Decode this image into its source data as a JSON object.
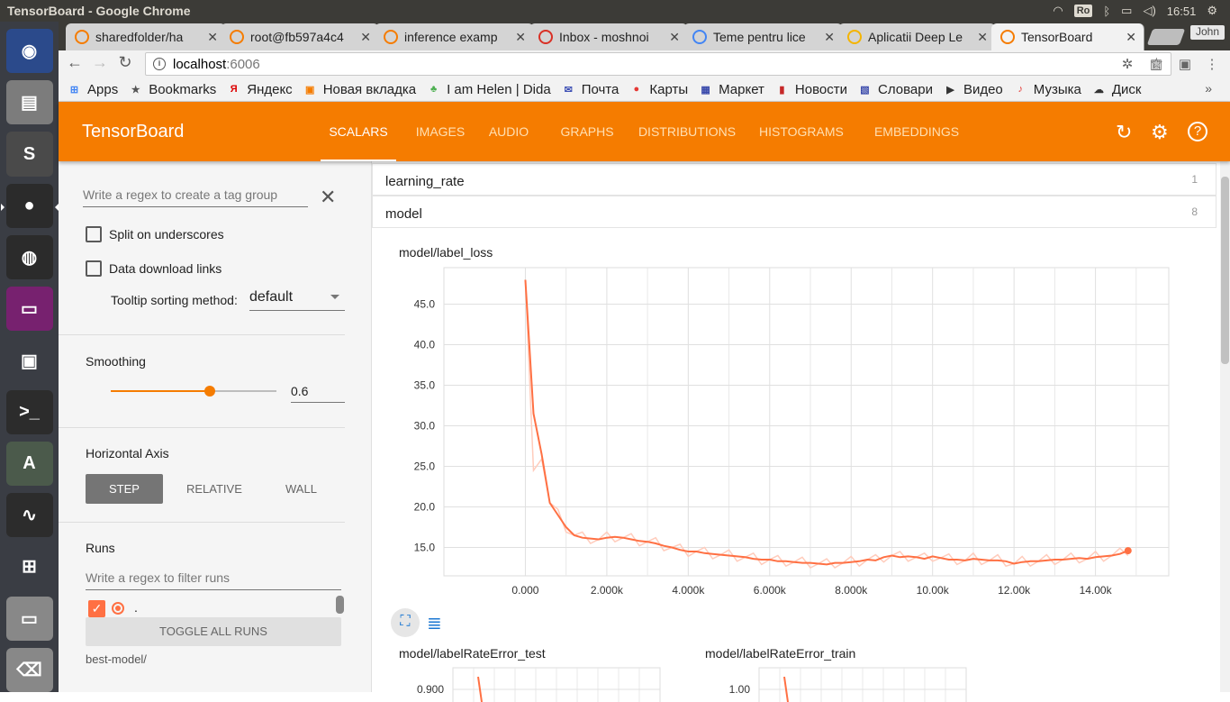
{
  "os": {
    "window_title": "TensorBoard - Google Chrome",
    "keyboard_layout": "Ro",
    "clock": "16:51"
  },
  "launcher": {
    "items": [
      {
        "name": "dash-home-icon",
        "color": "#2b4a8b",
        "glyph": "◉"
      },
      {
        "name": "file-manager-icon",
        "color": "#7c7c7c",
        "glyph": "▤"
      },
      {
        "name": "sublime-text-icon",
        "color": "#4a4a4a",
        "glyph": "S"
      },
      {
        "name": "chrome-icon",
        "color": "#2b2b2b",
        "glyph": "●"
      },
      {
        "name": "firefox-icon",
        "color": "#2b2b2b",
        "glyph": "◍"
      },
      {
        "name": "app-purple-icon",
        "color": "#77216f",
        "glyph": "▭"
      },
      {
        "name": "remote-desktop-icon",
        "color": "#3a3d44",
        "glyph": "▣"
      },
      {
        "name": "terminal-icon",
        "color": "#2c2c2c",
        "glyph": ">_"
      },
      {
        "name": "software-updater-icon",
        "color": "#4b5a4b",
        "glyph": "A"
      },
      {
        "name": "system-monitor-icon",
        "color": "#2c2c2c",
        "glyph": "∿"
      },
      {
        "name": "workspace-switcher-icon",
        "color": "#3a3d44",
        "glyph": "⊞"
      },
      {
        "name": "disk-drive-icon",
        "color": "#888",
        "glyph": "▭"
      },
      {
        "name": "trash-icon",
        "color": "#888",
        "glyph": "⌫"
      }
    ]
  },
  "tabs": [
    {
      "label": "sharedfolder/ha",
      "icon_color": "#f57c00",
      "active": false
    },
    {
      "label": "root@fb597a4c4",
      "icon_color": "#f57c00",
      "active": false
    },
    {
      "label": "inference examp",
      "icon_color": "#f57c00",
      "active": false
    },
    {
      "label": "Inbox - moshnoi",
      "icon_color": "#d93025",
      "active": false
    },
    {
      "label": "Teme pentru lice",
      "icon_color": "#4285f4",
      "active": false
    },
    {
      "label": "Aplicatii Deep Le",
      "icon_color": "#f4b400",
      "active": false
    },
    {
      "label": "TensorBoard",
      "icon_color": "#f57c00",
      "active": true
    }
  ],
  "profile_name": "John",
  "address": {
    "host": "localhost",
    "port": ":6006"
  },
  "bookmarks": [
    {
      "label": "Apps",
      "icon": "⊞",
      "color": "#4285f4"
    },
    {
      "label": "Bookmarks",
      "icon": "★",
      "color": "#555"
    },
    {
      "label": "Яндекс",
      "icon": "Я",
      "color": "#d00"
    },
    {
      "label": "Новая вкладка",
      "icon": "▣",
      "color": "#f57c00"
    },
    {
      "label": "I am Helen | Dida",
      "icon": "♣",
      "color": "#4caf50"
    },
    {
      "label": "Почта",
      "icon": "✉",
      "color": "#3f51b5"
    },
    {
      "label": "Карты",
      "icon": "●",
      "color": "#e53935"
    },
    {
      "label": "Маркет",
      "icon": "▦",
      "color": "#3949ab"
    },
    {
      "label": "Новости",
      "icon": "▮",
      "color": "#c62828"
    },
    {
      "label": "Словари",
      "icon": "▧",
      "color": "#3949ab"
    },
    {
      "label": "Видео",
      "icon": "▶",
      "color": "#333"
    },
    {
      "label": "Музыка",
      "icon": "♪",
      "color": "#e53935"
    },
    {
      "label": "Диск",
      "icon": "☁",
      "color": "#333"
    }
  ],
  "tensorboard": {
    "logo": "TensorBoard",
    "nav": [
      "SCALARS",
      "IMAGES",
      "AUDIO",
      "GRAPHS",
      "DISTRIBUTIONS",
      "HISTOGRAMS",
      "EMBEDDINGS"
    ],
    "active_nav": "SCALARS"
  },
  "sidebar": {
    "regex_placeholder": "Write a regex to create a tag group",
    "split_underscores": "Split on underscores",
    "data_download": "Data download links",
    "tooltip_label": "Tooltip sorting method:",
    "tooltip_value": "default",
    "smoothing_label": "Smoothing",
    "smoothing_value": "0.6",
    "smoothing_fraction": 0.6,
    "axis_label": "Horizontal Axis",
    "axis_options": [
      "STEP",
      "RELATIVE",
      "WALL"
    ],
    "axis_selected": "STEP",
    "runs_label": "Runs",
    "runs_filter_placeholder": "Write a regex to filter runs",
    "run_name": ".",
    "toggle_runs": "TOGGLE ALL RUNS",
    "log_dir": "best-model/"
  },
  "categories": [
    {
      "name": "learning_rate",
      "count": "1"
    },
    {
      "name": "model",
      "count": "8"
    }
  ],
  "chart_data": [
    {
      "type": "line",
      "title": "model/label_loss",
      "xlabel": "",
      "ylabel": "",
      "xlim": [
        -2000,
        15800
      ],
      "ylim": [
        11.5,
        49.5
      ],
      "x_ticks": [
        "0.000",
        "2.000k",
        "4.000k",
        "6.000k",
        "8.000k",
        "10.00k",
        "12.00k",
        "14.00k"
      ],
      "x_tick_values": [
        0,
        2000,
        4000,
        6000,
        8000,
        10000,
        12000,
        14000
      ],
      "y_ticks": [
        "15.0",
        "20.0",
        "25.0",
        "30.0",
        "35.0",
        "40.0",
        "45.0"
      ],
      "y_tick_values": [
        15,
        20,
        25,
        30,
        35,
        40,
        45
      ],
      "grid": true,
      "series": [
        {
          "color": "#ff7043",
          "x": [
            0,
            200,
            400,
            600,
            800,
            1000,
            1200,
            1400,
            1600,
            1800,
            2000,
            2200,
            2400,
            2600,
            2800,
            3000,
            3200,
            3400,
            3600,
            3800,
            4000,
            4200,
            4400,
            4600,
            4800,
            5000,
            5200,
            5400,
            5600,
            5800,
            6000,
            6200,
            6400,
            6600,
            6800,
            7000,
            7200,
            7400,
            7600,
            7800,
            8000,
            8200,
            8400,
            8600,
            8800,
            9000,
            9200,
            9400,
            9600,
            9800,
            10000,
            10200,
            10400,
            10600,
            10800,
            11000,
            11200,
            11400,
            11600,
            11800,
            12000,
            12200,
            12400,
            12600,
            12800,
            13000,
            13200,
            13400,
            13600,
            13800,
            14000,
            14200,
            14400,
            14600,
            14800
          ],
          "y": [
            48.0,
            31.5,
            26.5,
            20.5,
            19.0,
            17.5,
            16.5,
            16.2,
            16.1,
            16.0,
            16.2,
            16.3,
            16.2,
            16.0,
            15.8,
            15.7,
            15.5,
            15.2,
            15.0,
            14.7,
            14.5,
            14.5,
            14.3,
            14.2,
            14.1,
            14.0,
            13.9,
            13.8,
            13.6,
            13.5,
            13.5,
            13.3,
            13.3,
            13.2,
            13.1,
            13.1,
            13.0,
            12.9,
            13.1,
            13.1,
            13.2,
            13.3,
            13.5,
            13.4,
            13.8,
            14.0,
            13.8,
            13.9,
            13.8,
            13.6,
            13.9,
            13.7,
            13.5,
            13.5,
            13.4,
            13.6,
            13.5,
            13.4,
            13.4,
            13.3,
            13.0,
            13.2,
            13.3,
            13.3,
            13.4,
            13.5,
            13.5,
            13.6,
            13.7,
            13.6,
            13.8,
            13.9,
            14.0,
            14.2,
            14.6
          ]
        }
      ]
    },
    {
      "type": "line",
      "title": "model/labelRateError_test",
      "y_ticks": [
        "0.900"
      ]
    },
    {
      "type": "line",
      "title": "model/labelRateError_train",
      "y_ticks": [
        "1.00"
      ]
    }
  ]
}
